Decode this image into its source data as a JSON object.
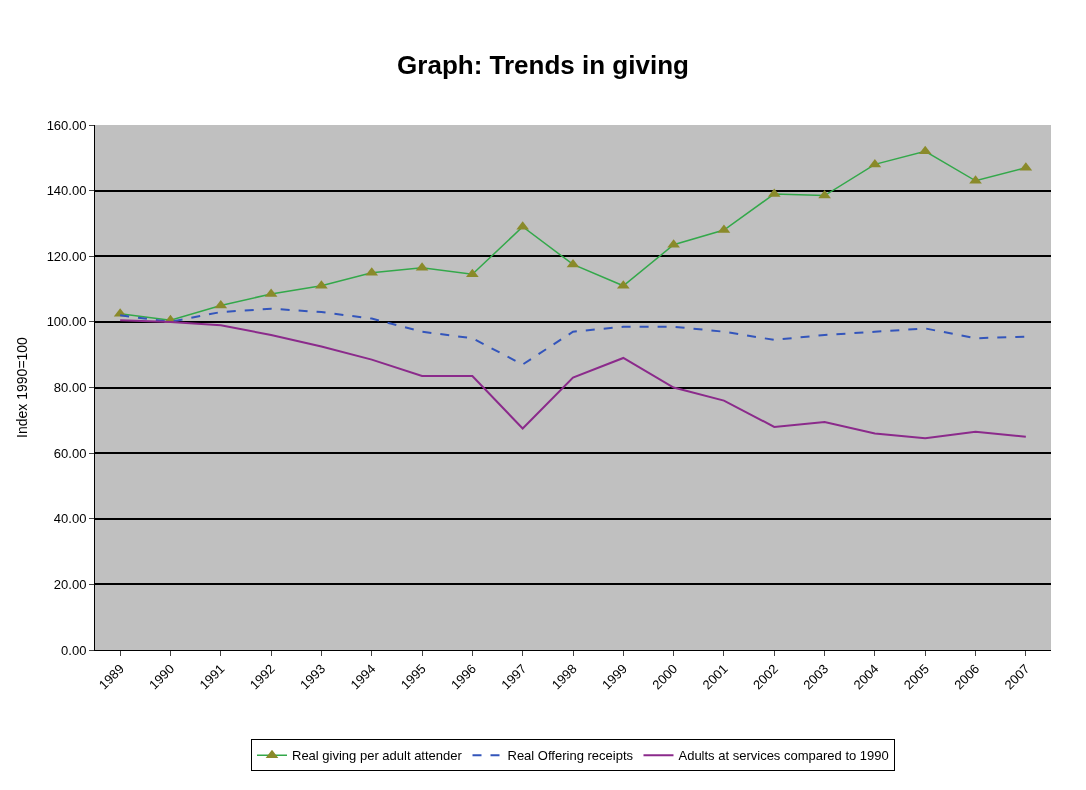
{
  "chart_data": {
    "type": "line",
    "title": "Graph: Trends in giving",
    "ylabel": "Index 1990=100",
    "categories": [
      "1989",
      "1990",
      "1991",
      "1992",
      "1993",
      "1994",
      "1995",
      "1996",
      "1997",
      "1998",
      "1999",
      "2000",
      "2001",
      "2002",
      "2003",
      "2004",
      "2005",
      "2006",
      "2007"
    ],
    "series": [
      {
        "name": "Real giving per adult attender",
        "color": "#33a84a",
        "marker": "triangle",
        "line_style": "solid",
        "values": [
          102.5,
          100.5,
          105,
          108.5,
          111,
          115,
          116.5,
          114.5,
          129,
          117.5,
          111,
          123.5,
          128,
          139,
          138.5,
          148,
          152,
          143,
          147
        ]
      },
      {
        "name": "Real Offering receipts",
        "color": "#3355bb",
        "marker": "none",
        "line_style": "dashed",
        "values": [
          102,
          100,
          103,
          104,
          103,
          101,
          97,
          95,
          87,
          97,
          98.5,
          98.5,
          97,
          94.5,
          96,
          97,
          98,
          95,
          95.5
        ]
      },
      {
        "name": "Adults at services compared to 1990",
        "color": "#8b2a8b",
        "marker": "none",
        "line_style": "solid",
        "values": [
          100.5,
          100,
          99,
          96,
          92.5,
          88.5,
          83.5,
          83.5,
          67.5,
          83,
          89,
          80,
          76,
          68,
          69.5,
          66,
          64.5,
          66.5,
          65
        ]
      }
    ],
    "ylim": [
      0,
      160
    ],
    "yticks": [
      {
        "value": 0,
        "label": "0.00"
      },
      {
        "value": 20,
        "label": "20.00"
      },
      {
        "value": 40,
        "label": "40.00"
      },
      {
        "value": 60,
        "label": "60.00"
      },
      {
        "value": 80,
        "label": "80.00"
      },
      {
        "value": 100,
        "label": "100.00"
      },
      {
        "value": 120,
        "label": "120.00"
      },
      {
        "value": 140,
        "label": "140.00"
      },
      {
        "value": 160,
        "label": "160.00"
      }
    ],
    "grid": "y",
    "legend": "bottom"
  }
}
